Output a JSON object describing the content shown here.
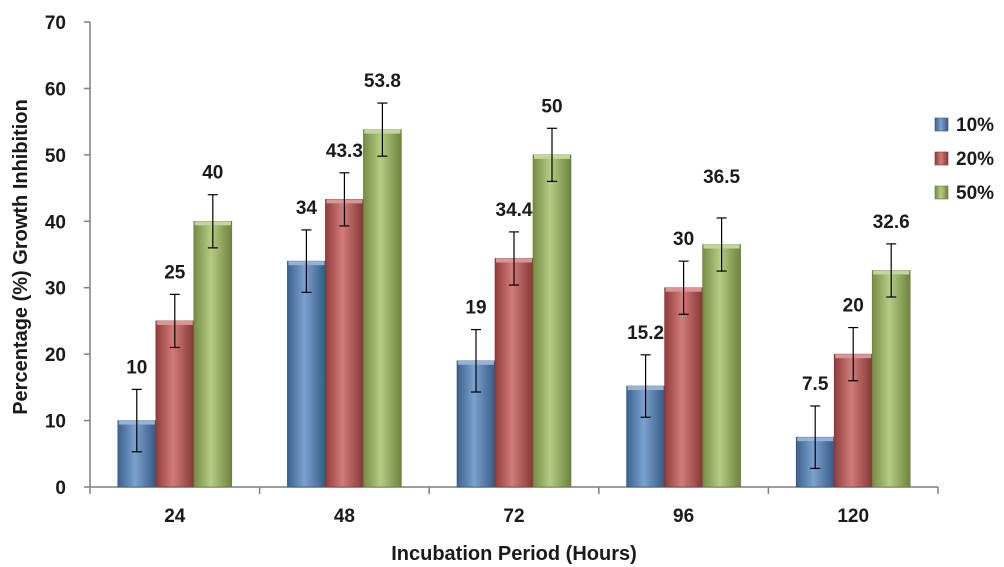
{
  "chart_data": {
    "type": "bar",
    "categories": [
      "24",
      "48",
      "72",
      "96",
      "120"
    ],
    "series": [
      {
        "name": "10%",
        "values": [
          10,
          34,
          19,
          15.2,
          7.5
        ],
        "error": [
          4.7,
          4.7,
          4.7,
          4.7,
          4.7
        ],
        "color": "#4F81BD"
      },
      {
        "name": "20%",
        "values": [
          25,
          43.3,
          34.4,
          30,
          20
        ],
        "error": [
          4.0,
          4.0,
          4.0,
          4.0,
          4.0
        ],
        "color": "#C0504D"
      },
      {
        "name": "50%",
        "values": [
          40,
          53.8,
          50,
          36.5,
          32.6
        ],
        "error": [
          4.0,
          4.0,
          4.0,
          4.0,
          4.0
        ],
        "color": "#9BBB59"
      }
    ],
    "data_labels": [
      [
        "10",
        "34",
        "19",
        "15.2",
        "7.5"
      ],
      [
        "25",
        "43.3",
        "34.4",
        "30",
        "20"
      ],
      [
        "40",
        "53.8",
        "50",
        "36.5",
        "32.6"
      ]
    ],
    "title": "",
    "xlabel": "Incubation Period (Hours)",
    "ylabel": "Percentage (%) Growth Inhibition",
    "ylim": [
      0,
      70
    ],
    "yticks": [
      "0",
      "10",
      "20",
      "30",
      "40",
      "50",
      "60",
      "70"
    ],
    "grid": false,
    "legend_position": "right"
  }
}
